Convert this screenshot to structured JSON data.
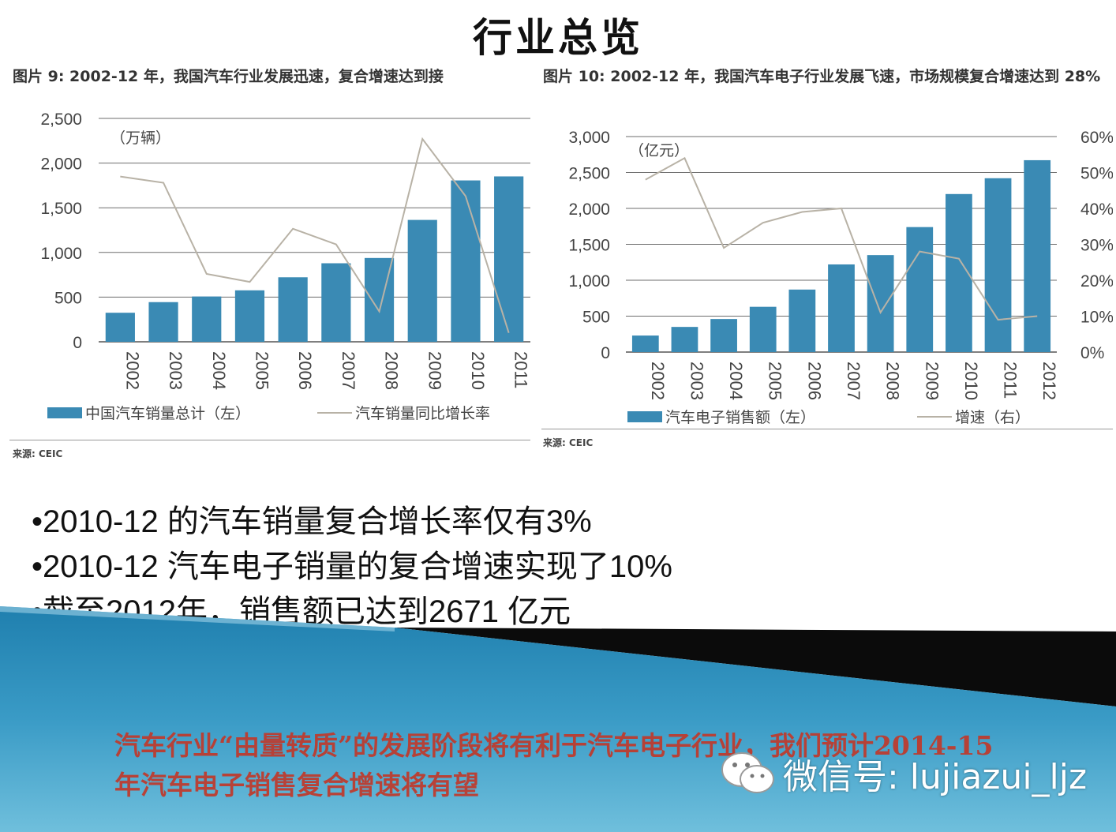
{
  "page": {
    "title": "行业总览",
    "bullets": [
      "•2010-12 的汽车销量复合增长率仅有3%",
      "•2010-12 汽车电子销量的复合增速实现了10%",
      "•截至2012年，销售额已达到2671 亿元"
    ],
    "conclusion": "汽车行业“由量转质”的发展阶段将有利于汽车电子行业，我们预计2014-15 年汽车电子销售复合增速将有望",
    "watermark": "微信号: lujiazui_ljz",
    "colors": {
      "bar": "#3a8ab4",
      "line": "#b8b2a6",
      "banner": "#2b8cb5",
      "conclusion": "#c0392b"
    }
  },
  "chart_data": [
    {
      "type": "bar",
      "caption": "图片 9: 2002-12 年，我国汽车行业发展迅速，复合增速达到接",
      "unit_label": "（万辆）",
      "categories": [
        "2002",
        "2003",
        "2004",
        "2005",
        "2006",
        "2007",
        "2008",
        "2009",
        "2010",
        "2011"
      ],
      "series": [
        {
          "name": "中国汽车销量总计（左）",
          "kind": "bar",
          "axis": "left",
          "values": [
            325,
            444,
            507,
            576,
            722,
            879,
            938,
            1364,
            1806,
            1851
          ]
        },
        {
          "name": "汽车销量同比增长率",
          "kind": "line",
          "axis": "left_scaled",
          "values": [
            1850,
            1780,
            760,
            670,
            1265,
            1090,
            340,
            2270,
            1630,
            100
          ]
        }
      ],
      "ylim": [
        0,
        2500
      ],
      "yticks": [
        "0",
        "500",
        "1,000",
        "1,500",
        "2,000",
        "2,500"
      ],
      "legend_bar": "中国汽车销量总计（左）",
      "legend_line": "汽车销量同比增长率",
      "source": "来源: CEIC",
      "grid": true,
      "legend_position": "bottom"
    },
    {
      "type": "bar",
      "caption": "图片 10: 2002-12 年，我国汽车电子行业发展飞速，市场规模复合增速达到 28%",
      "unit_label": "（亿元）",
      "categories": [
        "2002",
        "2003",
        "2004",
        "2005",
        "2006",
        "2007",
        "2008",
        "2009",
        "2010",
        "2011",
        "2012"
      ],
      "series": [
        {
          "name": "汽车电子销售额（左）",
          "kind": "bar",
          "axis": "left",
          "values": [
            230,
            350,
            460,
            630,
            870,
            1220,
            1350,
            1740,
            2200,
            2420,
            2671
          ]
        },
        {
          "name": "增速（右）",
          "kind": "line",
          "axis": "right",
          "values": [
            48,
            54,
            29,
            36,
            39,
            40,
            11,
            28,
            26,
            9,
            10
          ]
        }
      ],
      "ylim": [
        0,
        3000
      ],
      "y2lim": [
        0,
        60
      ],
      "yticks": [
        "0",
        "500",
        "1,000",
        "1,500",
        "2,000",
        "2,500",
        "3,000"
      ],
      "y2ticks": [
        "0%",
        "10%",
        "20%",
        "30%",
        "40%",
        "50%",
        "60%"
      ],
      "legend_bar": "汽车电子销售额（左）",
      "legend_line": "增速（右）",
      "source": "来源: CEIC",
      "grid": true,
      "legend_position": "bottom"
    }
  ]
}
